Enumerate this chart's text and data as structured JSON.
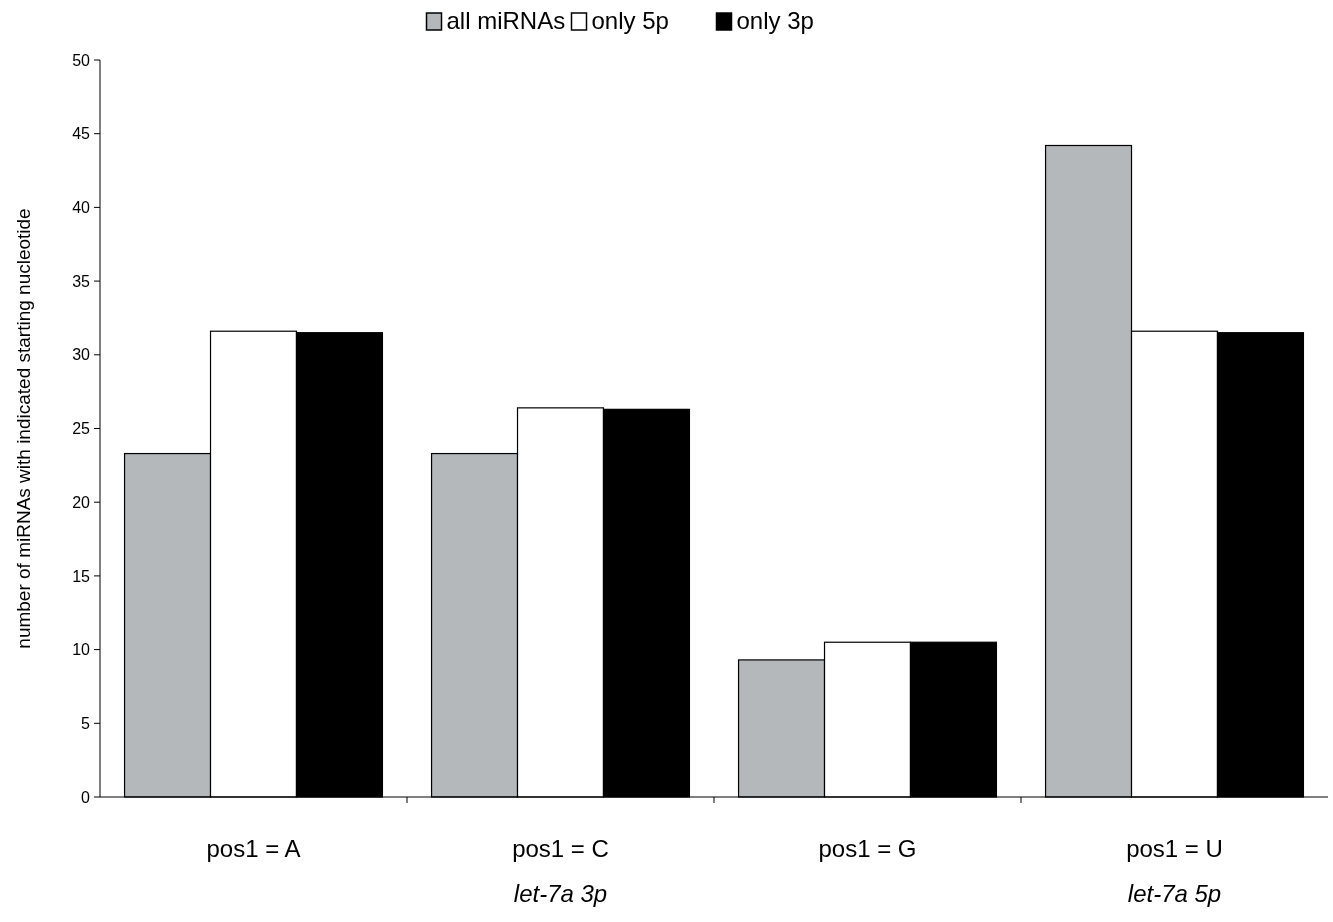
{
  "chart_data": {
    "type": "bar",
    "categories": [
      "pos1 = A",
      "pos1 = C",
      "pos1 = G",
      "pos1 = U"
    ],
    "series": [
      {
        "name": "all miRNAs",
        "color": "#b5b8bb",
        "values": [
          23.3,
          23.3,
          9.3,
          44.2
        ]
      },
      {
        "name": "only 5p",
        "color": "#ffffff",
        "values": [
          31.6,
          26.4,
          10.5,
          31.6
        ]
      },
      {
        "name": "only 3p",
        "color": "#000000",
        "values": [
          31.5,
          26.3,
          10.5,
          31.5
        ]
      }
    ],
    "ylabel": "number of miRNAs with indicated starting nucleotide",
    "ylim": [
      0,
      50
    ],
    "yticks": [
      0,
      5,
      10,
      15,
      20,
      25,
      30,
      35,
      40,
      45,
      50
    ],
    "legend": "top",
    "annotations": [
      "let-7a 3p",
      "let-7a 5p"
    ]
  }
}
